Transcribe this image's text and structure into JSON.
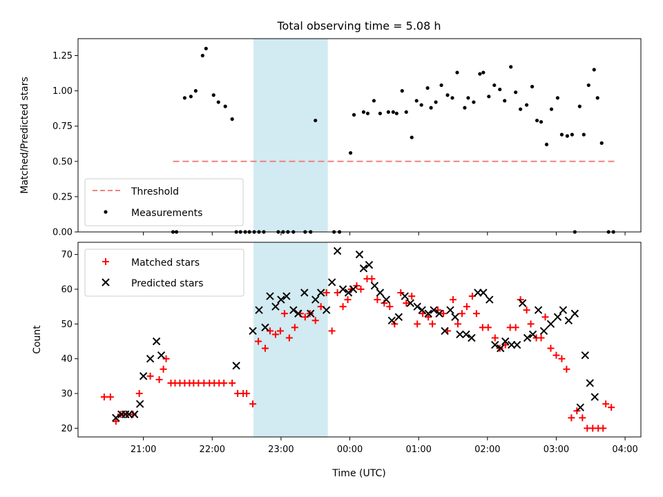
{
  "chart_data": [
    {
      "type": "scatter",
      "title": "Total observing time = 5.08 h",
      "xlabel": "",
      "ylabel": "Matched/Predicted stars",
      "x_unit": "hours since 20:00 UTC",
      "xlim": [
        0.05,
        8.23
      ],
      "ylim": [
        0.0,
        1.37
      ],
      "yticks": [
        0.0,
        0.25,
        0.5,
        0.75,
        1.0,
        1.25
      ],
      "ytick_labels": [
        "0.00",
        "0.25",
        "0.50",
        "0.75",
        "1.00",
        "1.25"
      ],
      "observing_window": [
        2.6,
        3.68
      ],
      "threshold": {
        "name": "Threshold",
        "value": 0.5,
        "x_range": [
          1.43,
          7.85
        ],
        "color": "#f08080"
      },
      "legend": [
        "Threshold",
        "Measurements"
      ],
      "legend_position": "lower-left",
      "series": [
        {
          "name": "Measurements",
          "color": "#000000",
          "x": [
            1.43,
            1.48,
            1.6,
            1.69,
            1.76,
            1.86,
            1.91,
            2.02,
            2.09,
            2.19,
            2.29,
            2.35,
            2.41,
            2.48,
            2.54,
            2.61,
            2.68,
            2.75,
            2.96,
            3.03,
            3.1,
            3.18,
            3.35,
            3.43,
            3.5,
            3.77,
            3.85,
            4.01,
            4.06,
            4.2,
            4.26,
            4.35,
            4.44,
            4.56,
            4.63,
            4.68,
            4.76,
            4.82,
            4.9,
            4.97,
            5.04,
            5.13,
            5.18,
            5.25,
            5.33,
            5.42,
            5.49,
            5.56,
            5.67,
            5.72,
            5.8,
            5.89,
            5.94,
            6.02,
            6.1,
            6.18,
            6.25,
            6.34,
            6.41,
            6.48,
            6.57,
            6.65,
            6.72,
            6.78,
            6.86,
            6.93,
            7.02,
            7.08,
            7.16,
            7.23,
            7.27,
            7.34,
            7.4,
            7.47,
            7.55,
            7.6,
            7.66,
            7.76,
            7.83
          ],
          "y": [
            0.0,
            0.0,
            0.95,
            0.96,
            1.0,
            1.25,
            1.3,
            0.97,
            0.92,
            0.89,
            0.8,
            0.0,
            0.0,
            0.0,
            0.0,
            0.0,
            0.0,
            0.0,
            0.0,
            0.0,
            0.0,
            0.0,
            0.0,
            0.0,
            0.79,
            0.0,
            0.0,
            0.56,
            0.83,
            0.85,
            0.84,
            0.93,
            0.84,
            0.85,
            0.85,
            0.84,
            1.0,
            0.85,
            0.67,
            0.93,
            0.9,
            1.02,
            0.88,
            0.92,
            1.04,
            0.97,
            0.95,
            1.13,
            0.88,
            0.95,
            0.92,
            1.12,
            1.13,
            0.96,
            1.04,
            1.01,
            0.93,
            1.17,
            0.99,
            0.87,
            0.9,
            1.03,
            0.79,
            0.78,
            0.62,
            0.87,
            0.95,
            0.69,
            0.68,
            0.69,
            0.0,
            0.89,
            0.69,
            1.04,
            1.15,
            0.95,
            0.63,
            0.0,
            0.0
          ]
        }
      ]
    },
    {
      "type": "scatter",
      "title": "",
      "xlabel": "Time (UTC)",
      "ylabel": "Count",
      "x_unit": "hours since 20:00 UTC",
      "xlim": [
        0.05,
        8.23
      ],
      "ylim": [
        17.5,
        73.5
      ],
      "yticks": [
        20,
        30,
        40,
        50,
        60,
        70
      ],
      "ytick_labels": [
        "20",
        "30",
        "40",
        "50",
        "60",
        "70"
      ],
      "xticks": [
        1,
        2,
        3,
        4,
        5,
        6,
        7,
        8
      ],
      "xtick_labels": [
        "21:00",
        "22:00",
        "23:00",
        "00:00",
        "01:00",
        "02:00",
        "03:00",
        "04:00"
      ],
      "observing_window": [
        2.6,
        3.68
      ],
      "legend": [
        "Matched stars",
        "Predicted stars"
      ],
      "legend_position": "top-left",
      "series": [
        {
          "name": "Matched stars",
          "marker": "+",
          "color": "#ff0000",
          "x": [
            0.43,
            0.52,
            0.6,
            0.67,
            0.77,
            0.85,
            0.94,
            1.1,
            1.23,
            1.29,
            1.33,
            1.4,
            1.46,
            1.53,
            1.6,
            1.67,
            1.73,
            1.8,
            1.88,
            1.96,
            2.03,
            2.1,
            2.17,
            2.29,
            2.37,
            2.45,
            2.5,
            2.59,
            2.67,
            2.77,
            2.84,
            2.92,
            2.99,
            3.05,
            3.12,
            3.2,
            3.28,
            3.35,
            3.42,
            3.5,
            3.58,
            3.66,
            3.74,
            3.82,
            3.9,
            3.97,
            4.02,
            4.1,
            4.16,
            4.25,
            4.32,
            4.4,
            4.5,
            4.58,
            4.65,
            4.74,
            4.82,
            4.9,
            4.98,
            5.06,
            5.14,
            5.2,
            5.28,
            5.36,
            5.42,
            5.5,
            5.57,
            5.63,
            5.7,
            5.78,
            5.84,
            5.93,
            6.01,
            6.11,
            6.18,
            6.26,
            6.33,
            6.41,
            6.48,
            6.57,
            6.63,
            6.71,
            6.78,
            6.84,
            6.92,
            7.0,
            7.08,
            7.15,
            7.22,
            7.3,
            7.38,
            7.45,
            7.53,
            7.61,
            7.68,
            7.72,
            7.8
          ],
          "y": [
            29,
            29,
            22,
            24,
            24,
            24,
            30,
            35,
            34,
            37,
            40,
            33,
            33,
            33,
            33,
            33,
            33,
            33,
            33,
            33,
            33,
            33,
            33,
            33,
            30,
            30,
            30,
            27,
            45,
            43,
            48,
            47,
            48,
            53,
            46,
            49,
            53,
            52,
            53,
            51,
            55,
            59,
            48,
            59,
            55,
            57,
            60,
            61,
            60,
            63,
            63,
            57,
            56,
            55,
            50,
            59,
            56,
            58,
            50,
            53,
            52,
            50,
            54,
            53,
            48,
            57,
            50,
            53,
            55,
            58,
            53,
            49,
            49,
            46,
            43,
            44,
            49,
            49,
            57,
            54,
            50,
            46,
            46,
            52,
            43,
            41,
            40,
            37,
            23,
            25,
            23,
            20,
            20,
            20,
            20,
            27,
            26
          ]
        },
        {
          "name": "Predicted stars",
          "marker": "x",
          "color": "#000000",
          "x": [
            0.6,
            0.68,
            0.74,
            0.79,
            0.87,
            0.95,
            1.0,
            1.1,
            1.19,
            1.26,
            2.35,
            2.59,
            2.68,
            2.77,
            2.84,
            2.92,
            3.0,
            3.08,
            3.18,
            3.25,
            3.34,
            3.43,
            3.5,
            3.58,
            3.66,
            3.74,
            3.82,
            3.9,
            3.98,
            4.05,
            4.14,
            4.2,
            4.28,
            4.36,
            4.44,
            4.53,
            4.61,
            4.71,
            4.8,
            4.88,
            4.98,
            5.05,
            5.14,
            5.22,
            5.3,
            5.38,
            5.46,
            5.53,
            5.6,
            5.69,
            5.77,
            5.86,
            5.94,
            6.03,
            6.11,
            6.19,
            6.26,
            6.35,
            6.43,
            6.51,
            6.58,
            6.66,
            6.74,
            6.82,
            6.92,
            7.02,
            7.1,
            7.18,
            7.27,
            7.35,
            7.42,
            7.49,
            7.56
          ],
          "y": [
            23,
            24,
            24,
            24,
            24,
            27,
            35,
            40,
            45,
            41,
            38,
            48,
            54,
            49,
            58,
            55,
            57,
            58,
            54,
            53,
            59,
            53,
            57,
            59,
            54,
            62,
            71,
            60,
            59,
            60,
            70,
            66,
            67,
            61,
            59,
            57,
            51,
            52,
            58,
            56,
            55,
            54,
            53,
            54,
            53,
            48,
            54,
            52,
            47,
            47,
            46,
            59,
            59,
            57,
            44,
            43,
            45,
            44,
            44,
            56,
            46,
            47,
            54,
            48,
            50,
            52,
            54,
            51,
            53,
            26,
            41,
            33,
            29
          ]
        }
      ]
    }
  ]
}
